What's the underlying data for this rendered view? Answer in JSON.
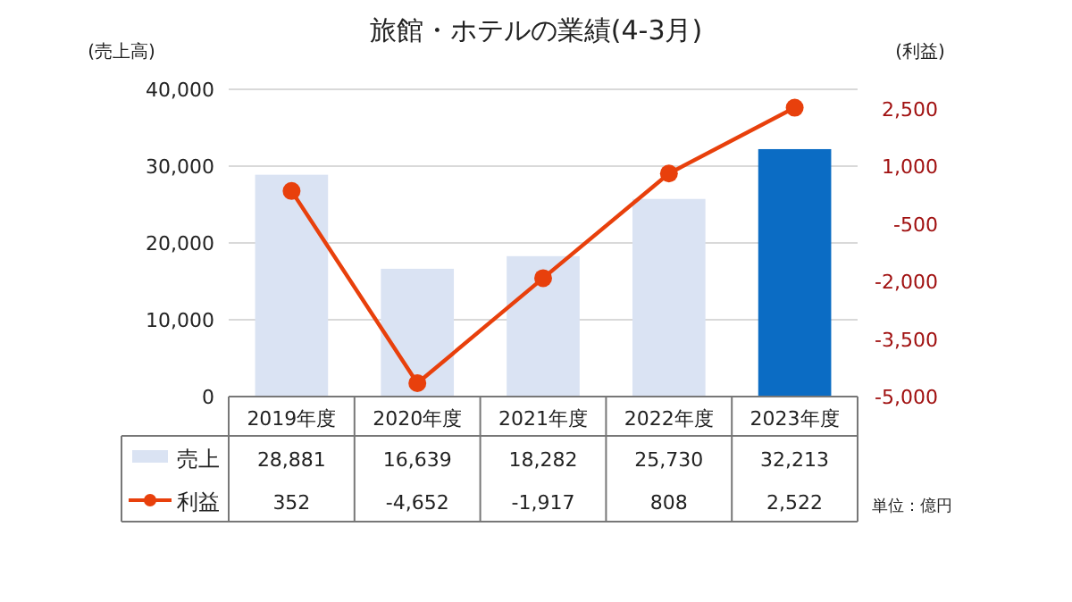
{
  "chart_data": {
    "type": "bar",
    "title": "旅館・ホテルの業績(4-3月)",
    "ylabel": "(売上高)",
    "y2label": "(利益)",
    "categories": [
      "2019年度",
      "2020年度",
      "2021年度",
      "2022年度",
      "2023年度"
    ],
    "series": [
      {
        "name": "売上",
        "colors": [
          "#dae3f3",
          "#dae3f3",
          "#dae3f3",
          "#dae3f3",
          "#0b6cc4"
        ],
        "values": [
          28881,
          16639,
          18282,
          25730,
          32213
        ],
        "value_labels": [
          "28,881",
          "16,639",
          "18,282",
          "25,730",
          "32,213"
        ]
      },
      {
        "name": "利益",
        "type": "line",
        "axis": "y2",
        "color": "#e8400c",
        "marker": "circle",
        "values": [
          352,
          -4652,
          -1917,
          808,
          2522
        ],
        "value_labels": [
          "352",
          "-4,652",
          "-1,917",
          "808",
          "2,522"
        ]
      }
    ],
    "ylim": [
      0,
      40000
    ],
    "yticks": [
      0,
      {
        "value": 10000,
        "label": "10,000"
      },
      {
        "value": 20000,
        "label": "20,000"
      },
      {
        "value": 30000,
        "label": "30,000"
      },
      {
        "value": 40000,
        "label": "40,000"
      }
    ],
    "y2lim": [
      -5000,
      3000
    ],
    "y2ticks": [
      {
        "value": -5000,
        "label": "-5,000"
      },
      {
        "value": -3500,
        "label": "-3,500"
      },
      {
        "value": -2000,
        "label": "-2,000"
      },
      {
        "value": -500,
        "label": "-500"
      },
      {
        "value": 1000,
        "label": "1,000"
      },
      {
        "value": 2500,
        "label": "2,500"
      }
    ],
    "grid": "y",
    "legend": "bottom",
    "annotations": [
      "単位：億円"
    ]
  }
}
